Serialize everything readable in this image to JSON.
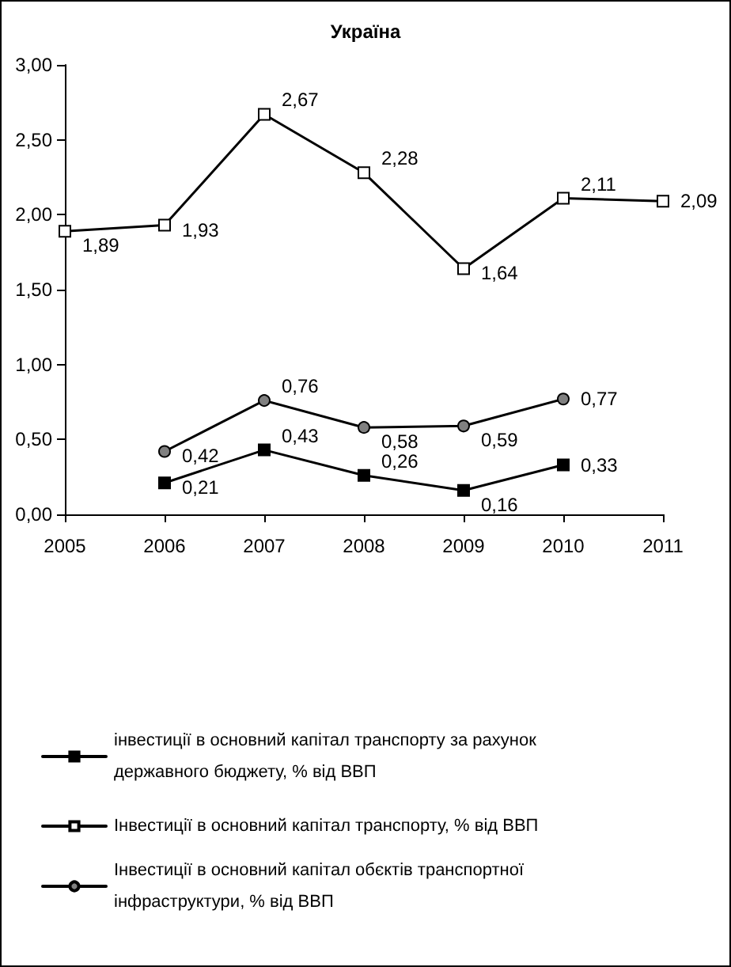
{
  "chart_data": {
    "type": "line",
    "title": "Україна",
    "x": [
      2005,
      2006,
      2007,
      2008,
      2009,
      2010,
      2011
    ],
    "xlim": [
      2005,
      2011
    ],
    "xticks": [
      2005,
      2006,
      2007,
      2008,
      2009,
      2010,
      2011
    ],
    "ylim": [
      0,
      3
    ],
    "yticks": [
      {
        "value": 0,
        "label": "0,00"
      },
      {
        "value": 0.5,
        "label": "0,50"
      },
      {
        "value": 1,
        "label": "1,00"
      },
      {
        "value": 1.5,
        "label": "1,50"
      },
      {
        "value": 2,
        "label": "2,00"
      },
      {
        "value": 2.5,
        "label": "2,50"
      },
      {
        "value": 3,
        "label": "3,00"
      }
    ],
    "grid": false,
    "legend": "bottom",
    "series": [
      {
        "name": "інвестиції в основний капітал транспорту за рахунок державного бюджету, % від ВВП",
        "color": "#000000",
        "marker": "square",
        "values": [
          null,
          0.21,
          0.43,
          0.26,
          0.16,
          0.33,
          null
        ],
        "value_labels": [
          null,
          "0,21",
          "0,43",
          "0,26",
          "0,16",
          "0,33",
          null
        ]
      },
      {
        "name": "Інвестиції в основний капітал транспорту, % від ВВП",
        "color": "#ffffff",
        "marker": "square",
        "values": [
          1.89,
          1.93,
          2.67,
          2.28,
          1.64,
          2.11,
          2.09
        ],
        "value_labels": [
          "1,89",
          "1,93",
          "2,67",
          "2,28",
          "1,64",
          "2,11",
          "2,09"
        ]
      },
      {
        "name": "Інвестиції в основний капітал обєктів транспортної інфраструктури, % від ВВП",
        "color": "#808080",
        "marker": "circle",
        "values": [
          null,
          0.42,
          0.76,
          0.58,
          0.59,
          0.77,
          null
        ],
        "value_labels": [
          null,
          "0,42",
          "0,76",
          "0,58",
          "0,59",
          "0,77",
          null
        ]
      }
    ]
  }
}
